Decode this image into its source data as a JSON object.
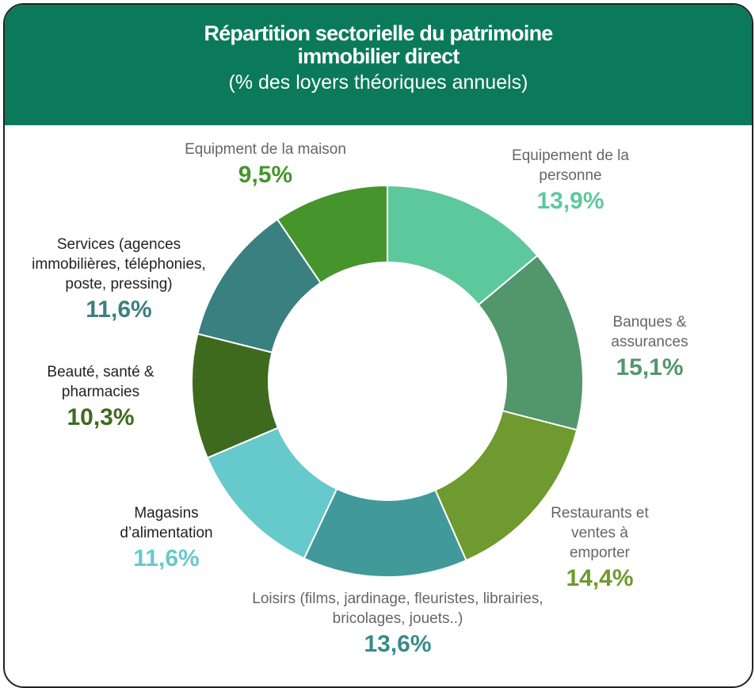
{
  "chart_data": {
    "type": "donut",
    "title": "Répartition sectorielle du patrimoine immobilier direct",
    "subtitle": "(% des loyers théoriques annuels)",
    "categories": [
      "Equipement de la personne",
      "Banques & assurances",
      "Restaurants et ventes à emporter",
      "Loisirs (films, jardinage, fleuristes, librairies, bricolages, jouets..)",
      "Magasins d’alimentation",
      "Beauté, santé & pharmacies",
      "Services (agences immobilières, téléphonies, poste, pressing)",
      "Equipment de la maison"
    ],
    "values": [
      13.9,
      15.1,
      14.4,
      13.6,
      11.6,
      10.3,
      11.6,
      9.5
    ],
    "value_labels": [
      "13,9%",
      "15,1%",
      "14,4%",
      "13,6%",
      "11,6%",
      "10,3%",
      "11,6%",
      "9,5%"
    ],
    "colors": [
      "#5ec89d",
      "#52966b",
      "#6f9a2f",
      "#41999a",
      "#66c9cc",
      "#3e6a1e",
      "#3a8080",
      "#46952c"
    ]
  }
}
